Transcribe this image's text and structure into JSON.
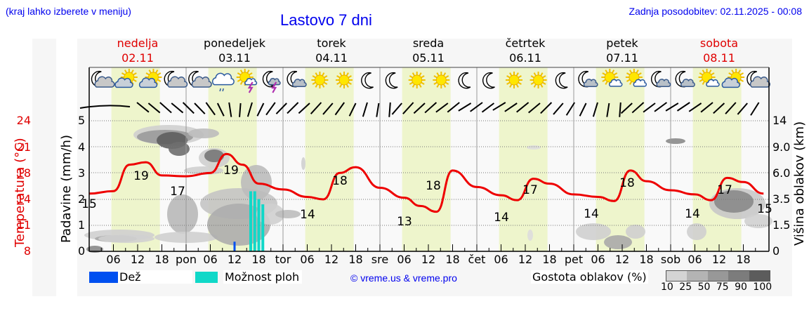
{
  "header": {
    "location_hint": "(kraj lahko izberete v meniju)",
    "title": "Lastovo 7 dni",
    "last_update": "Zadnja posodobitev: 02.11.2025 - 00:08"
  },
  "days": [
    {
      "name": "nedelja",
      "date": "02.11",
      "weekend": true
    },
    {
      "name": "ponedeljek",
      "date": "03.11",
      "weekend": false
    },
    {
      "name": "torek",
      "date": "04.11",
      "weekend": false
    },
    {
      "name": "sreda",
      "date": "05.11",
      "weekend": false
    },
    {
      "name": "četrtek",
      "date": "06.11",
      "weekend": false
    },
    {
      "name": "petek",
      "date": "07.11",
      "weekend": false
    },
    {
      "name": "sobota",
      "date": "08.11",
      "weekend": true
    }
  ],
  "axes": {
    "temperature": {
      "label": "Temperatura (°C)",
      "ticks": [
        "24",
        "21",
        "18",
        "14",
        "11",
        "8"
      ]
    },
    "precipitation": {
      "label": "Padavine (mm/h)",
      "ticks": [
        "5",
        "4",
        "3",
        "2",
        "1",
        "0"
      ]
    },
    "cloud_height": {
      "label": "Višina oblakov (km)",
      "ticks": [
        "14",
        "9.0",
        "6.0",
        "3.5",
        "1.5",
        "0"
      ]
    },
    "x_ticks": [
      "06",
      "12",
      "18",
      "pon",
      "06",
      "12",
      "18",
      "tor",
      "06",
      "12",
      "18",
      "sre",
      "06",
      "12",
      "18",
      "čet",
      "06",
      "12",
      "18",
      "pet",
      "06",
      "12",
      "18",
      "sob",
      "06",
      "12",
      "18"
    ]
  },
  "weather_icons": [
    "moon-cloud",
    "sun-cloud",
    "sun-cloud",
    "moon-cloud",
    "moon-cloud",
    "cloud-rain",
    "sun-thunder",
    "moon-thunder",
    "moon-cloud-small",
    "sun",
    "sun",
    "moon",
    "moon",
    "sun",
    "sun",
    "moon",
    "moon",
    "sun",
    "sun",
    "moon",
    "moon-cloud-small",
    "sun-cloud-small",
    "sun-cloud-small",
    "moon-cloud-small",
    "moon-cloud-small",
    "sun-cloud-small",
    "sun-cloud",
    "moon-cloud"
  ],
  "legend": {
    "rain": {
      "label": "Dež",
      "color": "#0050f0"
    },
    "showers": {
      "label": "Možnost ploh",
      "color": "#10d8c8"
    },
    "copyright": "© vreme.us & vreme.pro",
    "cloud_density_label": "Gostota oblakov (%)",
    "cloud_density_ticks": [
      "10",
      "25",
      "50",
      "75",
      "90",
      "100"
    ],
    "cloud_density_colors": [
      "#d4d4d4",
      "#b4b4b4",
      "#989898",
      "#7c7c7c",
      "#5c5c5c"
    ]
  },
  "colors": {
    "temperature_line": "#ee0000",
    "daylight_band": "#eef5cc",
    "title_blue": "#0000ee",
    "weekend_red": "#e00000"
  },
  "chart_data": {
    "type": "line",
    "title": "Lastovo 7 dni",
    "xlabel": "",
    "ylabel": "Temperatura (°C)",
    "ylim": [
      8,
      24
    ],
    "x_unit": "hours from 02.11 00:00",
    "series": [
      {
        "name": "Temperatura",
        "x": [
          0,
          6,
          10,
          14,
          18,
          24,
          30,
          34,
          38,
          42,
          48,
          54,
          58,
          62,
          66,
          72,
          78,
          82,
          86,
          90,
          96,
          102,
          106,
          110,
          114,
          120,
          126,
          130,
          134,
          138,
          144,
          150,
          154,
          158,
          162,
          167
        ],
        "values": [
          15,
          15.3,
          18.5,
          18.8,
          17.2,
          17.1,
          17.5,
          19.8,
          18.5,
          16.2,
          15.5,
          14.6,
          14.3,
          17.5,
          18.2,
          15.7,
          14.5,
          13.5,
          12.8,
          17.8,
          15.8,
          14.8,
          14.2,
          16.8,
          16.2,
          14.9,
          14.6,
          14.1,
          17.8,
          16.5,
          15.4,
          14.9,
          14.2,
          16.9,
          16.4,
          15.0
        ]
      },
      {
        "name": "Dež (mm/h)",
        "x": [
          36
        ],
        "values": [
          0.1
        ]
      },
      {
        "name": "Možnost ploh (mm/h)",
        "x": [
          40,
          41,
          42,
          43
        ],
        "values": [
          2.3,
          2.3,
          2.0,
          1.8
        ]
      }
    ],
    "annotations": [
      {
        "label": "15",
        "x": 0
      },
      {
        "label": "19",
        "x": 12
      },
      {
        "label": "17",
        "x": 20
      },
      {
        "label": "19",
        "x": 34
      },
      {
        "label": "14",
        "x": 53
      },
      {
        "label": "18",
        "x": 60
      },
      {
        "label": "13",
        "x": 77
      },
      {
        "label": "18",
        "x": 84
      },
      {
        "label": "14",
        "x": 101
      },
      {
        "label": "17",
        "x": 108
      },
      {
        "label": "14",
        "x": 125
      },
      {
        "label": "18",
        "x": 132
      },
      {
        "label": "14",
        "x": 149
      },
      {
        "label": "17",
        "x": 156
      },
      {
        "label": "15",
        "x": 167
      }
    ],
    "secondary_axes": {
      "precipitation_mm_h": [
        0,
        5
      ],
      "cloud_height_km": [
        "0",
        "1.5",
        "3.5",
        "6.0",
        "9.0",
        "14"
      ]
    },
    "grid": true,
    "legend_position": "bottom"
  }
}
